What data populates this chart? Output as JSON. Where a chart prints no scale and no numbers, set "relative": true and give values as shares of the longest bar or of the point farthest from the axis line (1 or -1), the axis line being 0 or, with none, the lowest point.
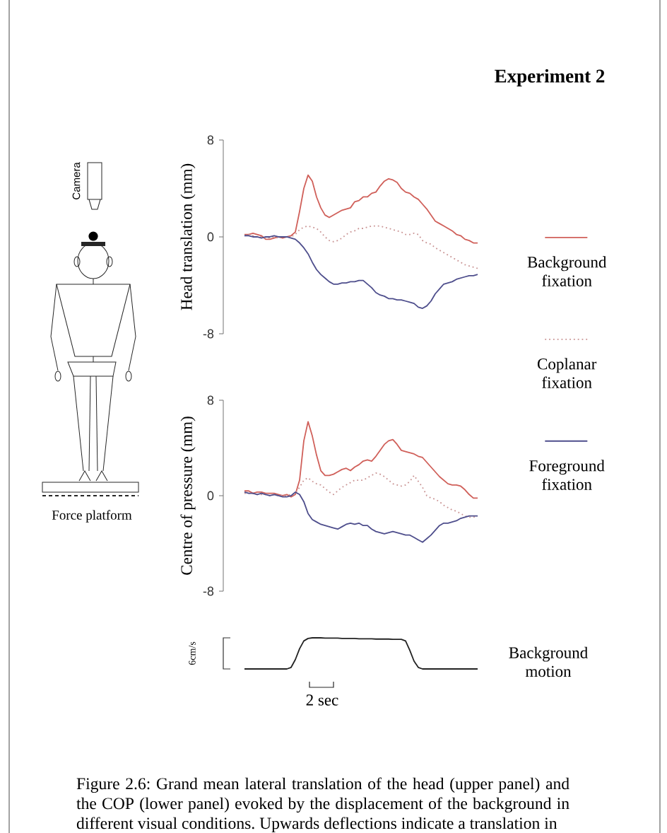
{
  "chart_data": [
    {
      "type": "line",
      "ylabel": "Head translation (mm)",
      "categories": [
        null,
        null,
        null,
        null,
        null,
        null,
        null,
        null,
        null,
        null,
        null,
        null,
        null,
        null,
        null,
        null,
        null,
        null,
        null,
        null,
        null,
        null,
        null,
        null,
        null,
        null,
        null,
        null,
        null,
        null,
        null,
        null,
        null,
        null,
        null,
        null,
        null,
        null,
        null,
        null,
        null,
        null,
        null,
        null,
        null,
        null,
        null,
        null,
        null,
        null,
        null,
        null,
        null,
        null,
        null,
        null
      ],
      "ylim": [
        -8,
        8
      ],
      "yticks": [
        -8,
        0,
        8
      ],
      "legend": "right",
      "annotations": [
        "Experiment 2",
        "Camera",
        "Force platform"
      ],
      "series": [
        {
          "name": "Background fixation",
          "color": "#d0605a",
          "line_style": "solid",
          "values": [
            0.2,
            0.2,
            0.3,
            0.2,
            0.1,
            -0.2,
            -0.2,
            -0.1,
            0.0,
            -0.1,
            0.0,
            0.1,
            0.4,
            2.1,
            4.0,
            5.1,
            4.6,
            3.3,
            2.4,
            1.8,
            1.6,
            1.8,
            2.0,
            2.2,
            2.3,
            2.4,
            2.9,
            3.0,
            3.3,
            3.3,
            3.6,
            3.7,
            4.2,
            4.6,
            4.8,
            4.7,
            4.5,
            4.0,
            3.7,
            3.6,
            3.3,
            3.1,
            2.7,
            2.3,
            1.8,
            1.3,
            1.1,
            0.9,
            0.7,
            0.5,
            0.2,
            0.1,
            -0.2,
            -0.3,
            -0.5,
            -0.5
          ]
        },
        {
          "name": "Coplanar fixation",
          "color": "#c99393",
          "line_style": "dotted",
          "values": [
            0.1,
            0.2,
            0.1,
            0.0,
            0.0,
            -0.1,
            -0.1,
            0.0,
            -0.1,
            0.0,
            0.0,
            0.0,
            0.2,
            0.6,
            0.8,
            0.9,
            0.8,
            0.7,
            0.4,
            0.0,
            -0.3,
            -0.4,
            -0.3,
            -0.1,
            0.2,
            0.4,
            0.5,
            0.7,
            0.7,
            0.8,
            0.9,
            0.9,
            0.9,
            0.8,
            0.7,
            0.6,
            0.5,
            0.4,
            0.2,
            0.2,
            0.3,
            0.2,
            -0.3,
            -0.5,
            -0.6,
            -0.9,
            -1.1,
            -1.3,
            -1.5,
            -1.7,
            -1.9,
            -2.1,
            -2.3,
            -2.4,
            -2.5,
            -2.6
          ]
        },
        {
          "name": "Foreground fixation",
          "color": "#4e4e8c",
          "line_style": "solid",
          "values": [
            0.1,
            0.1,
            0.0,
            0.0,
            -0.1,
            0.0,
            0.0,
            0.1,
            0.0,
            0.0,
            0.0,
            -0.1,
            -0.2,
            -0.5,
            -0.9,
            -1.4,
            -2.1,
            -2.7,
            -3.1,
            -3.4,
            -3.7,
            -3.9,
            -3.9,
            -3.8,
            -3.8,
            -3.7,
            -3.7,
            -3.6,
            -3.6,
            -3.9,
            -4.2,
            -4.6,
            -4.8,
            -4.9,
            -5.1,
            -5.1,
            -5.2,
            -5.2,
            -5.3,
            -5.4,
            -5.5,
            -5.8,
            -5.9,
            -5.7,
            -5.3,
            -4.7,
            -4.3,
            -3.9,
            -3.8,
            -3.7,
            -3.5,
            -3.4,
            -3.3,
            -3.2,
            -3.2,
            -3.1
          ]
        }
      ]
    },
    {
      "type": "line",
      "ylabel": "Centre of pressure (mm)",
      "categories": [
        null,
        null,
        null,
        null,
        null,
        null,
        null,
        null,
        null,
        null,
        null,
        null,
        null,
        null,
        null,
        null,
        null,
        null,
        null,
        null,
        null,
        null,
        null,
        null,
        null,
        null,
        null,
        null,
        null,
        null,
        null,
        null,
        null,
        null,
        null,
        null,
        null,
        null,
        null,
        null,
        null,
        null,
        null,
        null,
        null,
        null,
        null,
        null,
        null,
        null,
        null,
        null,
        null,
        null,
        null,
        null
      ],
      "ylim": [
        -8,
        8
      ],
      "yticks": [
        -8,
        0,
        8
      ],
      "series": [
        {
          "color": "#d0605a",
          "line_style": "solid",
          "values": [
            0.4,
            0.4,
            0.2,
            0.3,
            0.3,
            0.2,
            0.2,
            0.2,
            0.1,
            0.0,
            0.1,
            -0.1,
            0.1,
            1.3,
            4.6,
            6.2,
            5.0,
            3.4,
            2.1,
            1.7,
            1.7,
            1.8,
            2.0,
            2.2,
            2.3,
            2.1,
            2.4,
            2.6,
            2.9,
            3.0,
            2.9,
            3.3,
            3.8,
            4.3,
            4.6,
            4.7,
            4.3,
            3.8,
            3.7,
            3.6,
            3.5,
            3.3,
            3.2,
            2.8,
            2.4,
            2.0,
            1.6,
            1.3,
            1.0,
            0.9,
            0.9,
            0.8,
            0.5,
            0.1,
            -0.2,
            -0.2
          ]
        },
        {
          "color": "#c99393",
          "line_style": "dotted",
          "values": [
            0.2,
            0.2,
            0.2,
            0.1,
            0.1,
            0.1,
            0.0,
            0.1,
            0.0,
            0.0,
            0.0,
            0.1,
            0.2,
            0.7,
            1.3,
            1.5,
            1.2,
            1.0,
            0.9,
            0.6,
            0.3,
            0.1,
            0.4,
            0.7,
            0.9,
            1.1,
            1.3,
            1.3,
            1.3,
            1.5,
            1.7,
            1.9,
            1.8,
            1.6,
            1.3,
            1.0,
            0.9,
            0.8,
            0.9,
            1.2,
            1.7,
            1.2,
            0.7,
            0.0,
            -0.2,
            -0.3,
            -0.5,
            -0.8,
            -1.0,
            -1.2,
            -1.3,
            -1.5,
            -1.7,
            -1.8,
            -1.8,
            -1.7
          ]
        },
        {
          "color": "#4e4e8c",
          "line_style": "solid",
          "values": [
            0.3,
            0.2,
            0.2,
            0.1,
            0.2,
            0.1,
            0.0,
            0.1,
            0.0,
            -0.1,
            -0.1,
            0.0,
            0.3,
            0.1,
            -0.5,
            -1.5,
            -2.0,
            -2.2,
            -2.4,
            -2.5,
            -2.6,
            -2.7,
            -2.8,
            -2.6,
            -2.4,
            -2.3,
            -2.4,
            -2.3,
            -2.5,
            -2.5,
            -2.8,
            -3.0,
            -3.1,
            -3.2,
            -3.1,
            -3.0,
            -3.1,
            -3.2,
            -3.3,
            -3.3,
            -3.5,
            -3.7,
            -3.9,
            -3.6,
            -3.3,
            -2.9,
            -2.5,
            -2.3,
            -2.3,
            -2.2,
            -2.1,
            -1.9,
            -1.8,
            -1.7,
            -1.7,
            -1.7
          ]
        }
      ]
    },
    {
      "type": "line",
      "relative": true,
      "ylabel": "6cm/s",
      "categories": [
        null,
        null,
        null,
        null,
        null,
        null,
        null,
        null,
        null,
        null,
        null,
        null,
        null,
        null,
        null,
        null,
        null,
        null,
        null,
        null,
        null,
        null,
        null,
        null,
        null,
        null,
        null,
        null,
        null,
        null,
        null,
        null,
        null,
        null,
        null,
        null,
        null,
        null,
        null,
        null,
        null,
        null,
        null,
        null,
        null,
        null,
        null,
        null,
        null,
        null,
        null,
        null,
        null,
        null,
        null,
        null
      ],
      "annotations": [
        "2 sec",
        "Figure 2.6: Grand mean lateral translation of the head (upper panel) and the COP (lower panel) evoked by the displacement of the background in different visual conditions. Upwards deflections indicate a translation in"
      ],
      "series": [
        {
          "name": "Background motion",
          "color": "#222222",
          "values": [
            0,
            0,
            0,
            0,
            0,
            0,
            0,
            0,
            0,
            0,
            0,
            0.05,
            0.3,
            0.65,
            0.9,
            0.98,
            1.0,
            1.0,
            1.0,
            0.99,
            0.99,
            0.99,
            0.99,
            0.98,
            0.98,
            0.98,
            0.98,
            0.97,
            0.97,
            0.97,
            0.97,
            0.96,
            0.96,
            0.96,
            0.96,
            0.95,
            0.95,
            0.95,
            0.9,
            0.6,
            0.25,
            0.05,
            0,
            0,
            0,
            0,
            0,
            0,
            0,
            0,
            0,
            0,
            0,
            0,
            0,
            0
          ]
        }
      ]
    }
  ]
}
